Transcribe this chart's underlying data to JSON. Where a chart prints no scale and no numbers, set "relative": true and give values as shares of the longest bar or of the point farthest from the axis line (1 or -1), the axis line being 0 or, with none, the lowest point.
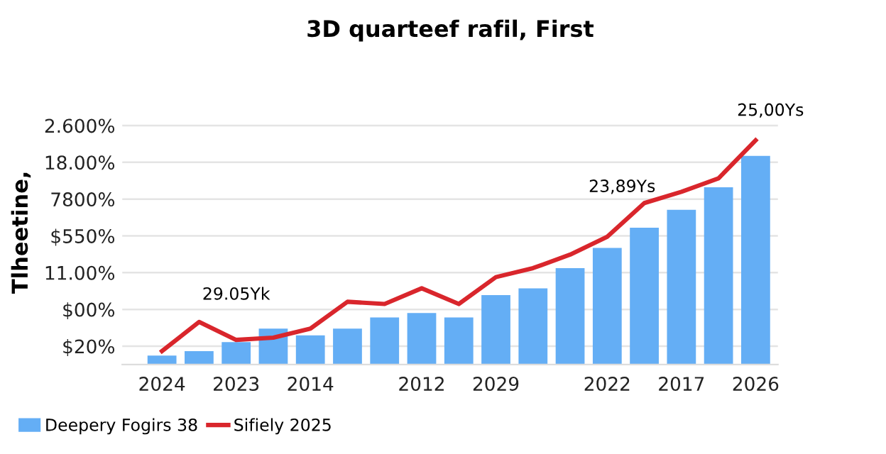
{
  "chart_data": {
    "type": "bar",
    "title": "3D quarteef rafil, First",
    "ylabel": "Tlheetine,",
    "relative": true,
    "categories": [
      "2024",
      null,
      "2023",
      null,
      "2014",
      null,
      null,
      "2012",
      null,
      "2029",
      null,
      null,
      "2022",
      null,
      "2017",
      null,
      "2026"
    ],
    "series": [
      {
        "name": "Deepery Fogirs 38",
        "color": "#64aef5",
        "values": [
          0.04,
          0.06,
          0.1,
          0.16,
          0.13,
          0.16,
          0.21,
          0.23,
          0.21,
          0.31,
          0.34,
          0.43,
          0.52,
          0.61,
          0.69,
          0.79,
          0.93
        ]
      },
      {
        "name": "Sifiely 2025",
        "type": "line",
        "color": "#d9262c",
        "values": [
          0.06,
          0.19,
          0.11,
          0.12,
          0.16,
          0.28,
          0.27,
          0.34,
          0.27,
          0.39,
          0.43,
          0.49,
          0.57,
          0.72,
          0.77,
          0.83,
          1
        ]
      }
    ],
    "annotations": [
      "29.05Yk",
      "23,89Ys",
      "25,00Ys",
      "$20%",
      "$00%",
      "11.00%",
      "$550%",
      "7800%",
      "18.00%",
      "2.600%"
    ],
    "grid": "y",
    "legend": "bottom",
    "marker": "none",
    "line_style": "solid"
  }
}
